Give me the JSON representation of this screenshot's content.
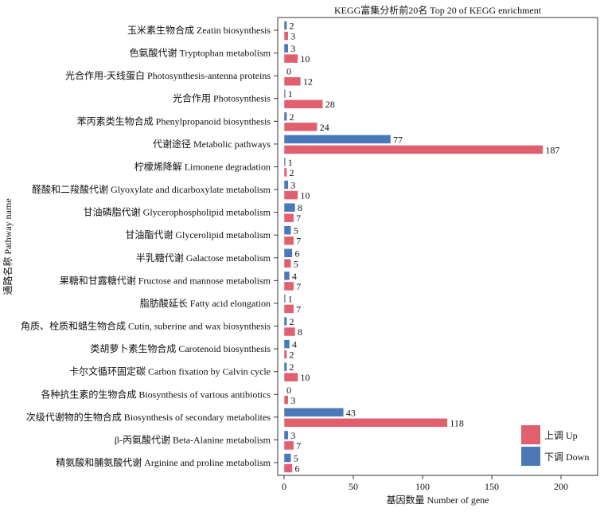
{
  "chart_data": {
    "type": "bar",
    "orientation": "horizontal",
    "title": "KEGG富集分析前20名 Top 20 of KEGG enrichment",
    "xlabel": "基因数量  Number of gene",
    "ylabel": "通路名称 Pathway name",
    "xlim": [
      0,
      225
    ],
    "xticks": [
      0,
      50,
      100,
      150,
      200
    ],
    "legend_position": "bottom-right",
    "categories": [
      "玉米素生物合成  Zeatin biosynthesis",
      "色氨酸代谢  Tryptophan metabolism",
      "光合作用-天线蛋白  Photosynthesis-antenna proteins",
      "光合作用  Photosynthesis",
      "苯丙素类生物合成  Phenylpropanoid biosynthesis",
      "代谢途径  Metabolic pathways",
      "柠檬烯降解  Limonene degradation",
      "醛酸和二羧酸代谢  Glyoxylate and dicarboxylate metabolism",
      "甘油磷脂代谢  Glycerophospholipid metabolism",
      "甘油酯代谢  Glycerolipid metabolism",
      "半乳糖代谢  Galactose metabolism",
      "果糖和甘露糖代谢  Fructose and mannose metabolism",
      "脂肪酸延长  Fatty acid elongation",
      "角质、栓质和蜡生物合成  Cutin, suberine and wax biosynthesis",
      "类胡萝卜素生物合成  Carotenoid biosynthesis",
      "卡尔文循环固定碳  Carbon fixation by Calvin cycle",
      "各种抗生素的生物合成  Biosynthesis of various antibiotics",
      "次级代谢物的生物合成  Biosynthesis of secondary metabolites",
      "β-丙氨酸代谢  Beta-Alanine metabolism",
      "精氨酸和脯氨酸代谢  Arginine and proline metabolism"
    ],
    "series": [
      {
        "name": "下调  Down",
        "color": "#4a78b8",
        "values": [
          2,
          3,
          0,
          1,
          2,
          77,
          1,
          3,
          8,
          5,
          6,
          4,
          1,
          2,
          4,
          2,
          0,
          43,
          3,
          5
        ]
      },
      {
        "name": "上调  Up",
        "color": "#e06070",
        "values": [
          3,
          10,
          12,
          28,
          24,
          187,
          2,
          10,
          7,
          7,
          5,
          7,
          7,
          8,
          2,
          10,
          3,
          118,
          7,
          6
        ]
      }
    ]
  }
}
